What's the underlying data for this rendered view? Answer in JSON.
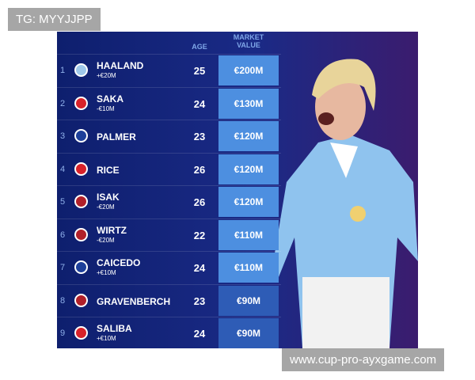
{
  "watermark_top": "TG: MYYJJPP",
  "watermark_bottom": "www.cup-pro-ayxgame.com",
  "header": {
    "age": "AGE",
    "market_value": "MARKET VALUE"
  },
  "rows": [
    {
      "rank": "1",
      "name": "HAALAND",
      "change": "+€20M",
      "age": "25",
      "value": "€200M"
    },
    {
      "rank": "2",
      "name": "SAKA",
      "change": "-€10M",
      "age": "24",
      "value": "€130M"
    },
    {
      "rank": "3",
      "name": "PALMER",
      "age": "23",
      "value": "€120M"
    },
    {
      "rank": "4",
      "name": "RICE",
      "age": "26",
      "value": "€120M"
    },
    {
      "rank": "5",
      "name": "ISAK",
      "change": "-€20M",
      "age": "26",
      "value": "€120M"
    },
    {
      "rank": "6",
      "name": "WIRTZ",
      "change": "-€20M",
      "age": "22",
      "value": "€110M"
    },
    {
      "rank": "7",
      "name": "CAICEDO",
      "change": "+€10M",
      "age": "24",
      "value": "€110M"
    },
    {
      "rank": "8",
      "name": "GRAVENBERCH",
      "age": "23",
      "value": "€90M"
    },
    {
      "rank": "9",
      "name": "SALIBA",
      "change": "+€10M",
      "age": "24",
      "value": "€90M"
    }
  ]
}
